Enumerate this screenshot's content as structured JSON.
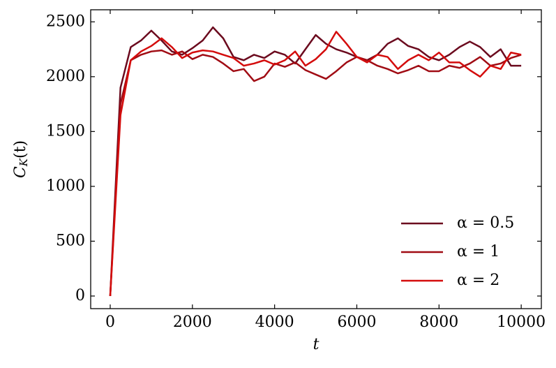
{
  "chart_data": {
    "type": "line",
    "xlabel": "t",
    "ylabel": {
      "base": "C",
      "sub": "K",
      "rest": "(t)"
    },
    "x": [
      0,
      250,
      500,
      750,
      1000,
      1250,
      1500,
      1750,
      2000,
      2250,
      2500,
      2750,
      3000,
      3250,
      3500,
      3750,
      4000,
      4250,
      4500,
      4750,
      5000,
      5250,
      5500,
      5750,
      6000,
      6250,
      6500,
      6750,
      7000,
      7250,
      7500,
      7750,
      8000,
      8250,
      8500,
      8750,
      9000,
      9250,
      9500,
      9750,
      10000
    ],
    "series": [
      {
        "name": "α = 0.5",
        "color": "#6b0a1e",
        "values": [
          0,
          1900,
          2270,
          2330,
          2420,
          2330,
          2230,
          2200,
          2260,
          2330,
          2450,
          2350,
          2180,
          2150,
          2200,
          2170,
          2230,
          2200,
          2120,
          2250,
          2380,
          2300,
          2250,
          2220,
          2180,
          2150,
          2200,
          2300,
          2350,
          2280,
          2250,
          2180,
          2150,
          2200,
          2270,
          2320,
          2270,
          2180,
          2250,
          2100,
          2100
        ]
      },
      {
        "name": "α = 1",
        "color": "#a00c14",
        "values": [
          0,
          1750,
          2150,
          2200,
          2230,
          2240,
          2200,
          2230,
          2160,
          2200,
          2180,
          2120,
          2050,
          2070,
          1960,
          2000,
          2120,
          2090,
          2130,
          2060,
          2020,
          1980,
          2050,
          2130,
          2180,
          2150,
          2100,
          2070,
          2030,
          2060,
          2100,
          2050,
          2050,
          2100,
          2080,
          2120,
          2180,
          2100,
          2120,
          2170,
          2200
        ]
      },
      {
        "name": "α = 2",
        "color": "#d40c0c",
        "values": [
          0,
          1650,
          2150,
          2230,
          2280,
          2350,
          2270,
          2170,
          2220,
          2240,
          2230,
          2200,
          2170,
          2100,
          2120,
          2150,
          2110,
          2150,
          2230,
          2100,
          2160,
          2250,
          2410,
          2300,
          2180,
          2130,
          2200,
          2180,
          2070,
          2150,
          2200,
          2150,
          2220,
          2130,
          2130,
          2060,
          2000,
          2100,
          2070,
          2220,
          2200
        ]
      }
    ],
    "xlim": [
      -475,
      10490
    ],
    "ylim": [
      -115,
      2610
    ],
    "xticks": [
      0,
      2000,
      4000,
      6000,
      8000,
      10000
    ],
    "yticks": [
      0,
      500,
      1000,
      1500,
      2000,
      2500
    ],
    "legend": "lower right",
    "grid": false
  }
}
